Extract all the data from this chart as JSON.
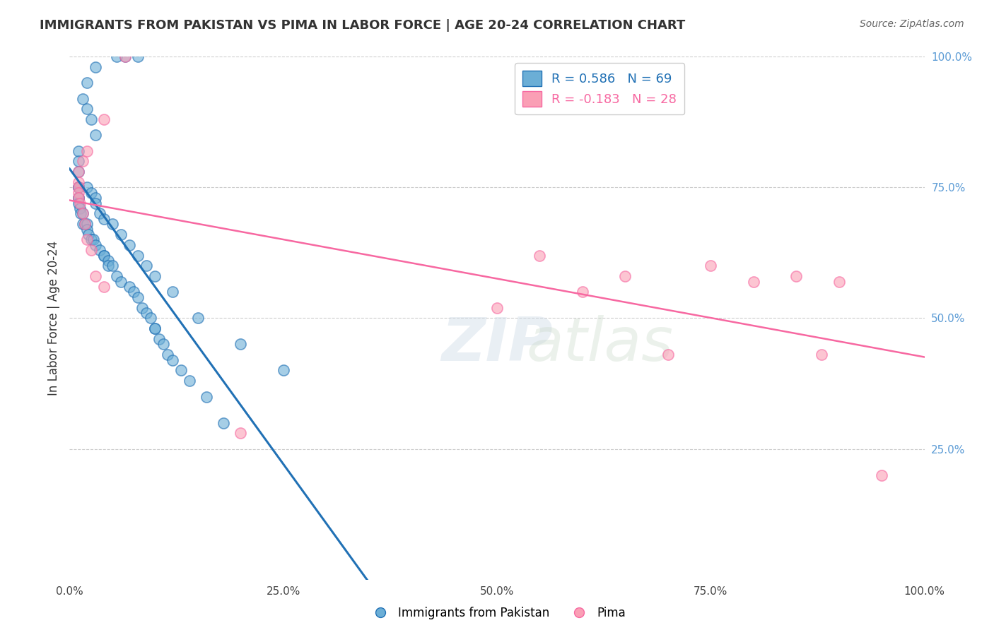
{
  "title": "IMMIGRANTS FROM PAKISTAN VS PIMA IN LABOR FORCE | AGE 20-24 CORRELATION CHART",
  "source_text": "Source: ZipAtlas.com",
  "xlabel": "",
  "ylabel": "In Labor Force | Age 20-24",
  "xlim": [
    0.0,
    1.0
  ],
  "ylim": [
    0.0,
    1.0
  ],
  "xtick_labels": [
    "0.0%",
    "25.0%",
    "50.0%",
    "75.0%",
    "100.0%"
  ],
  "xtick_positions": [
    0.0,
    0.25,
    0.5,
    0.75,
    1.0
  ],
  "ytick_labels": [
    "25.0%",
    "50.0%",
    "75.0%",
    "100.0%"
  ],
  "ytick_positions": [
    0.25,
    0.5,
    0.75,
    1.0
  ],
  "blue_R": 0.586,
  "blue_N": 69,
  "pink_R": -0.183,
  "pink_N": 28,
  "blue_color": "#6baed6",
  "pink_color": "#fa9fb5",
  "blue_line_color": "#2171b5",
  "pink_line_color": "#f768a1",
  "watermark": "ZIPatlas",
  "blue_points_x": [
    0.055,
    0.065,
    0.08,
    0.03,
    0.02,
    0.015,
    0.02,
    0.025,
    0.03,
    0.01,
    0.01,
    0.01,
    0.01,
    0.01,
    0.01,
    0.01,
    0.01,
    0.01,
    0.012,
    0.013,
    0.015,
    0.015,
    0.018,
    0.02,
    0.02,
    0.022,
    0.025,
    0.028,
    0.03,
    0.035,
    0.04,
    0.04,
    0.045,
    0.045,
    0.05,
    0.055,
    0.06,
    0.07,
    0.075,
    0.08,
    0.085,
    0.09,
    0.095,
    0.1,
    0.1,
    0.105,
    0.11,
    0.115,
    0.12,
    0.13,
    0.14,
    0.16,
    0.18,
    0.02,
    0.025,
    0.03,
    0.03,
    0.035,
    0.04,
    0.05,
    0.06,
    0.07,
    0.08,
    0.09,
    0.1,
    0.12,
    0.15,
    0.2,
    0.25
  ],
  "blue_points_y": [
    1.0,
    1.0,
    1.0,
    0.98,
    0.95,
    0.92,
    0.9,
    0.88,
    0.85,
    0.82,
    0.8,
    0.78,
    0.75,
    0.75,
    0.75,
    0.73,
    0.73,
    0.72,
    0.71,
    0.7,
    0.7,
    0.68,
    0.68,
    0.68,
    0.67,
    0.66,
    0.65,
    0.65,
    0.64,
    0.63,
    0.62,
    0.62,
    0.61,
    0.6,
    0.6,
    0.58,
    0.57,
    0.56,
    0.55,
    0.54,
    0.52,
    0.51,
    0.5,
    0.48,
    0.48,
    0.46,
    0.45,
    0.43,
    0.42,
    0.4,
    0.38,
    0.35,
    0.3,
    0.75,
    0.74,
    0.73,
    0.72,
    0.7,
    0.69,
    0.68,
    0.66,
    0.64,
    0.62,
    0.6,
    0.58,
    0.55,
    0.5,
    0.45,
    0.4
  ],
  "pink_points_x": [
    0.065,
    0.04,
    0.02,
    0.015,
    0.01,
    0.01,
    0.01,
    0.01,
    0.01,
    0.012,
    0.015,
    0.018,
    0.02,
    0.025,
    0.03,
    0.04,
    0.5,
    0.55,
    0.6,
    0.65,
    0.7,
    0.75,
    0.8,
    0.85,
    0.88,
    0.9,
    0.95,
    0.2
  ],
  "pink_points_y": [
    1.0,
    0.88,
    0.82,
    0.8,
    0.78,
    0.76,
    0.75,
    0.74,
    0.73,
    0.72,
    0.7,
    0.68,
    0.65,
    0.63,
    0.58,
    0.56,
    0.52,
    0.62,
    0.55,
    0.58,
    0.43,
    0.6,
    0.57,
    0.58,
    0.43,
    0.57,
    0.2,
    0.28
  ]
}
